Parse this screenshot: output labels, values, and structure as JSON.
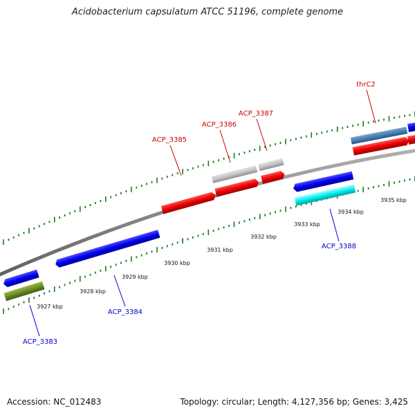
{
  "title": "Acidobacterium capsulatum ATCC 51196, complete genome",
  "footer": {
    "accession": "Accession: NC_012483",
    "topology": "Topology: circular; Length: 4,127,356 bp; Genes: 3,425"
  },
  "colors": {
    "forward_label": "#cc0000",
    "reverse_label": "#0000cc",
    "tick": "#1a7a1a",
    "backbone": "#808080"
  },
  "kbp_ticks": [
    "3927 kbp",
    "3928 kbp",
    "3929 kbp",
    "3930 kbp",
    "3931 kbp",
    "3932 kbp",
    "3933 kbp",
    "3934 kbp",
    "3935 kbp"
  ],
  "genes": [
    {
      "label": "ACP_3385",
      "strand": "forward"
    },
    {
      "label": "ACP_3386",
      "strand": "forward"
    },
    {
      "label": "ACP_3387",
      "strand": "forward"
    },
    {
      "label": "thrC2",
      "strand": "forward"
    },
    {
      "label": "ACP_3383",
      "strand": "reverse"
    },
    {
      "label": "ACP_3384",
      "strand": "reverse"
    },
    {
      "label": "ACP_3388",
      "strand": "reverse"
    }
  ]
}
